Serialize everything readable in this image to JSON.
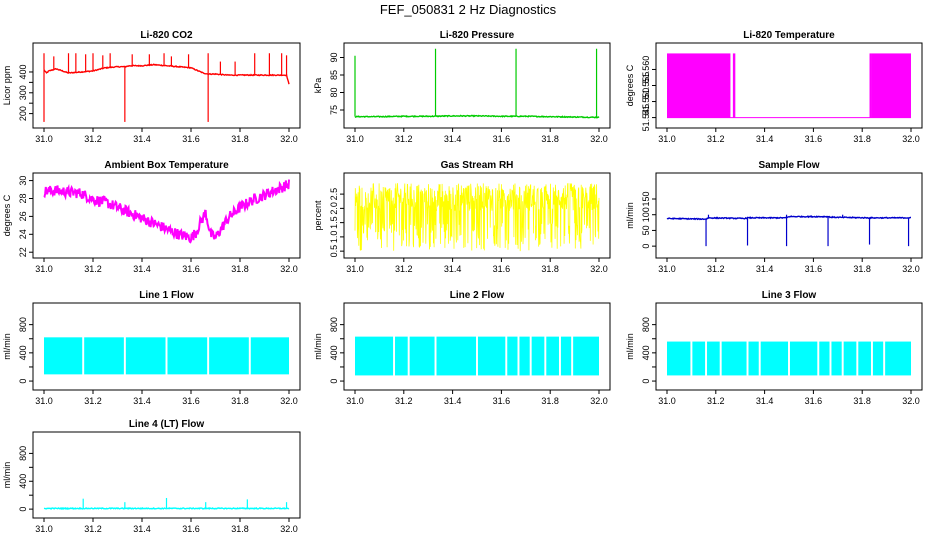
{
  "page": {
    "title": "FEF_050831  2 Hz Diagnostics"
  },
  "chart_data": [
    {
      "type": "line",
      "title": "Li-820 CO2",
      "ylabel": "Licor ppm",
      "color": "#ff0000",
      "xlim": [
        31.0,
        32.0
      ],
      "ylim": [
        150,
        520
      ],
      "xticks": [
        "31.0",
        "31.2",
        "31.4",
        "31.6",
        "31.8",
        "32.0"
      ],
      "yticks": [
        200,
        250,
        300,
        350,
        400
      ],
      "ytick_labels": [
        "200",
        "",
        "300",
        "",
        "400"
      ],
      "series": [
        {
          "x": [
            31.0,
            31.01,
            31.02,
            31.05,
            31.1,
            31.15,
            31.2,
            31.25,
            31.3,
            31.33,
            31.35,
            31.4,
            31.45,
            31.5,
            31.55,
            31.6,
            31.65,
            31.67,
            31.7,
            31.75,
            31.8,
            31.85,
            31.9,
            31.95,
            31.99,
            32.0
          ],
          "y": [
            410,
            395,
            405,
            415,
            395,
            400,
            405,
            420,
            425,
            425,
            430,
            430,
            435,
            430,
            425,
            420,
            395,
            390,
            390,
            385,
            385,
            385,
            385,
            385,
            385,
            340
          ],
          "spikes_up": [
            31.0,
            31.04,
            31.1,
            31.13,
            31.17,
            31.2,
            31.24,
            31.27,
            31.36,
            31.43,
            31.49,
            31.52,
            31.59,
            31.67,
            31.72,
            31.78,
            31.86,
            31.92,
            31.97,
            31.99
          ],
          "spikes_up_to": [
            490,
            475,
            490,
            490,
            485,
            490,
            480,
            490,
            485,
            485,
            490,
            475,
            485,
            490,
            450,
            450,
            490,
            490,
            490,
            480
          ],
          "spikes_down": [
            31.0,
            31.33,
            31.67
          ],
          "spikes_down_to": [
            160,
            160,
            160
          ]
        }
      ]
    },
    {
      "type": "line",
      "title": "Li-820 Pressure",
      "ylabel": "kPa",
      "color": "#00cc00",
      "xlim": [
        31.0,
        32.0
      ],
      "ylim": [
        71,
        93
      ],
      "xticks": [
        "31.0",
        "31.2",
        "31.4",
        "31.6",
        "31.8",
        "32.0"
      ],
      "yticks": [
        75,
        80,
        85,
        90
      ],
      "ytick_labels": [
        "75",
        "80",
        "85",
        "90"
      ],
      "series": [
        {
          "x": [
            31.0,
            31.1,
            31.2,
            31.3,
            31.4,
            31.5,
            31.6,
            31.7,
            31.8,
            31.9,
            32.0
          ],
          "y": [
            73.1,
            73.1,
            73.2,
            73.2,
            73.3,
            73.3,
            73.2,
            73.2,
            73.1,
            73.0,
            72.9
          ],
          "spikes_up": [
            31.0,
            31.33,
            31.66,
            31.99
          ],
          "spikes_up_to": [
            90.5,
            92.5,
            92.5,
            92.5
          ],
          "spikes_down": [],
          "spikes_down_to": []
        }
      ]
    },
    {
      "type": "line",
      "title": "Li-820 Temperature",
      "ylabel": "degrees C",
      "color": "#ff00ff",
      "xlim": [
        31.0,
        32.0
      ],
      "ylim": [
        51.543,
        51.567
      ],
      "xticks": [
        "31.0",
        "31.2",
        "31.4",
        "31.6",
        "31.8",
        "32.0"
      ],
      "yticks": [
        51.545,
        51.55,
        51.555,
        51.56
      ],
      "ytick_labels": [
        "51.545",
        "51.550",
        "51.555",
        "51.560"
      ],
      "band_mode": true,
      "series": [
        {
          "band_ranges": [
            [
              31.0,
              31.26
            ],
            [
              31.27,
              31.28
            ],
            [
              31.83,
              31.84
            ],
            [
              31.84,
              32.0
            ]
          ],
          "y_low": 51.545,
          "y_high": 51.565,
          "baseline": 51.545
        }
      ]
    },
    {
      "type": "line",
      "title": "Ambient Box Temperature",
      "ylabel": "degrees C",
      "color": "#ff00ff",
      "xlim": [
        31.0,
        32.0
      ],
      "ylim": [
        21.8,
        30.4
      ],
      "xticks": [
        "31.0",
        "31.2",
        "31.4",
        "31.6",
        "31.8",
        "32.0"
      ],
      "yticks": [
        22,
        24,
        26,
        28,
        30
      ],
      "ytick_labels": [
        "22",
        "24",
        "26",
        "28",
        "30"
      ],
      "series": [
        {
          "x": [
            31.0,
            31.05,
            31.1,
            31.15,
            31.2,
            31.25,
            31.3,
            31.35,
            31.4,
            31.45,
            31.5,
            31.55,
            31.6,
            31.62,
            31.64,
            31.66,
            31.68,
            31.7,
            31.75,
            31.8,
            31.85,
            31.9,
            31.95,
            32.0
          ],
          "y": [
            28.8,
            28.9,
            28.7,
            28.6,
            27.9,
            27.6,
            27.0,
            26.4,
            25.8,
            25.2,
            24.6,
            24.0,
            23.6,
            24.2,
            25.4,
            26.4,
            24.0,
            23.6,
            25.8,
            27.0,
            27.8,
            28.4,
            29.0,
            29.6
          ],
          "noise": 0.6
        }
      ]
    },
    {
      "type": "line",
      "title": "Gas Stream RH",
      "ylabel": "percent",
      "color": "#ffff00",
      "xlim": [
        31.0,
        32.0
      ],
      "ylim": [
        0.4,
        3.1
      ],
      "xticks": [
        "31.0",
        "31.2",
        "31.4",
        "31.6",
        "31.8",
        "32.0"
      ],
      "yticks": [
        0.5,
        1.0,
        1.5,
        2.0,
        2.5
      ],
      "ytick_labels": [
        "0.5",
        "1.0",
        "1.5",
        "2.0",
        "2.5"
      ],
      "noise_band": true,
      "series": [
        {
          "y_high": 2.9,
          "y_mid": 2.2,
          "y_low": 0.5
        }
      ]
    },
    {
      "type": "line",
      "title": "Sample Flow",
      "ylabel": "ml/min",
      "color": "#0000cc",
      "xlim": [
        31.0,
        32.0
      ],
      "ylim": [
        -25,
        220
      ],
      "xticks": [
        "31.0",
        "31.2",
        "31.4",
        "31.6",
        "31.8",
        "32.0"
      ],
      "yticks": [
        0,
        50,
        100,
        150
      ],
      "ytick_labels": [
        "0",
        "50",
        "100",
        "150"
      ],
      "series": [
        {
          "x": [
            31.0,
            31.16,
            31.17,
            31.32,
            31.33,
            31.49,
            31.5,
            31.66,
            31.67,
            31.83,
            31.84,
            32.0
          ],
          "y": [
            88,
            86,
            90,
            88,
            90,
            90,
            94,
            94,
            92,
            90,
            90,
            90
          ],
          "spikes_up": [
            31.17,
            31.49,
            31.72
          ],
          "spikes_up_to": [
            100,
            100,
            100
          ],
          "spikes_down": [
            31.16,
            31.33,
            31.49,
            31.66,
            31.83,
            31.99
          ],
          "spikes_down_to": [
            0,
            2,
            0,
            0,
            5,
            0
          ]
        }
      ]
    },
    {
      "type": "line",
      "title": "Line 1 Flow",
      "ylabel": "ml/min",
      "color": "#00ffff",
      "xlim": [
        31.0,
        32.0
      ],
      "ylim": [
        -70,
        1050
      ],
      "xticks": [
        "31.0",
        "31.2",
        "31.4",
        "31.6",
        "31.8",
        "32.0"
      ],
      "yticks": [
        0,
        200,
        400,
        600,
        800
      ],
      "ytick_labels": [
        "0",
        "",
        "400",
        "",
        "800"
      ],
      "block_mode": true,
      "series": [
        {
          "y_top": 620,
          "y_bottom": 95,
          "gaps": [
            31.16,
            31.33,
            31.5,
            31.67,
            31.84
          ],
          "x_start": 31.0,
          "x_end": 32.0
        }
      ]
    },
    {
      "type": "line",
      "title": "Line 2 Flow",
      "ylabel": "ml/min",
      "color": "#00ffff",
      "xlim": [
        31.0,
        32.0
      ],
      "ylim": [
        -70,
        1050
      ],
      "xticks": [
        "31.0",
        "31.2",
        "31.4",
        "31.6",
        "31.8",
        "32.0"
      ],
      "yticks": [
        0,
        200,
        400,
        600,
        800
      ],
      "ytick_labels": [
        "0",
        "",
        "400",
        "",
        "800"
      ],
      "block_mode": true,
      "series": [
        {
          "y_top": 630,
          "y_bottom": 80,
          "gaps": [
            31.16,
            31.22,
            31.33,
            31.5,
            31.62,
            31.67,
            31.72,
            31.78,
            31.84,
            31.89
          ],
          "x_start": 31.0,
          "x_end": 32.0
        }
      ]
    },
    {
      "type": "line",
      "title": "Line 3 Flow",
      "ylabel": "ml/min",
      "color": "#00ffff",
      "xlim": [
        31.0,
        32.0
      ],
      "ylim": [
        -70,
        1050
      ],
      "xticks": [
        "31.0",
        "31.2",
        "31.4",
        "31.6",
        "31.8",
        "32.0"
      ],
      "yticks": [
        0,
        200,
        400,
        600,
        800
      ],
      "ytick_labels": [
        "0",
        "",
        "400",
        "",
        "800"
      ],
      "block_mode": true,
      "series": [
        {
          "y_top": 560,
          "y_bottom": 80,
          "gaps": [
            31.1,
            31.16,
            31.22,
            31.33,
            31.38,
            31.5,
            31.62,
            31.67,
            31.72,
            31.78,
            31.84,
            31.89
          ],
          "x_start": 31.0,
          "x_end": 32.0
        }
      ]
    },
    {
      "type": "line",
      "title": "Line 4 (LT) Flow",
      "ylabel": "ml/min",
      "color": "#00ffff",
      "xlim": [
        31.0,
        32.0
      ],
      "ylim": [
        -70,
        1050
      ],
      "xticks": [
        "31.0",
        "31.2",
        "31.4",
        "31.6",
        "31.8",
        "32.0"
      ],
      "yticks": [
        0,
        200,
        400,
        600,
        800
      ],
      "ytick_labels": [
        "0",
        "",
        "400",
        "",
        "800"
      ],
      "series": [
        {
          "x": [
            31.0,
            32.0
          ],
          "y": [
            10,
            10
          ],
          "spikes_up": [
            31.16,
            31.33,
            31.5,
            31.66,
            31.83,
            31.99
          ],
          "spikes_up_to": [
            150,
            100,
            160,
            100,
            140,
            100
          ],
          "spikes_down": [],
          "spikes_down_to": []
        }
      ]
    }
  ]
}
